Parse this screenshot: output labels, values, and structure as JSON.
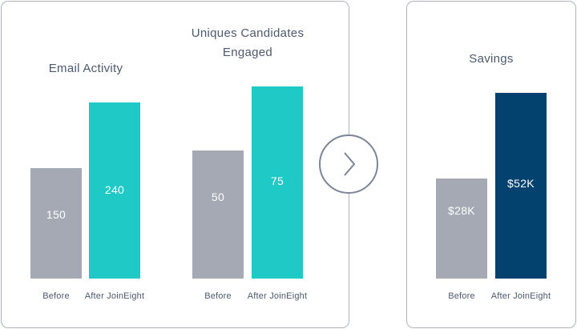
{
  "chart_data": [
    {
      "type": "bar",
      "title": "Email Activity",
      "categories": [
        "Before",
        "After JoinEight"
      ],
      "values": [
        150,
        240
      ],
      "value_labels": [
        "150",
        "240"
      ],
      "colors": [
        "#a4a9b3",
        "#1fc9c6"
      ]
    },
    {
      "type": "bar",
      "title": "Uniques Candidates\nEngaged",
      "categories": [
        "Before",
        "After JoinEight"
      ],
      "values": [
        50,
        75
      ],
      "value_labels": [
        "50",
        "75"
      ],
      "colors": [
        "#a4a9b3",
        "#1fc9c6"
      ]
    },
    {
      "type": "bar",
      "title": "Savings",
      "categories": [
        "Before",
        "After JoinEight"
      ],
      "values": [
        28,
        52
      ],
      "value_labels": [
        "$28K",
        "$52K"
      ],
      "colors": [
        "#a4a9b3",
        "#03426e"
      ]
    }
  ],
  "next_icon": "chevron-right-icon",
  "colors": {
    "text": "#4c5a6f",
    "border": "#aeb3bd",
    "circle": "#7a8597"
  }
}
